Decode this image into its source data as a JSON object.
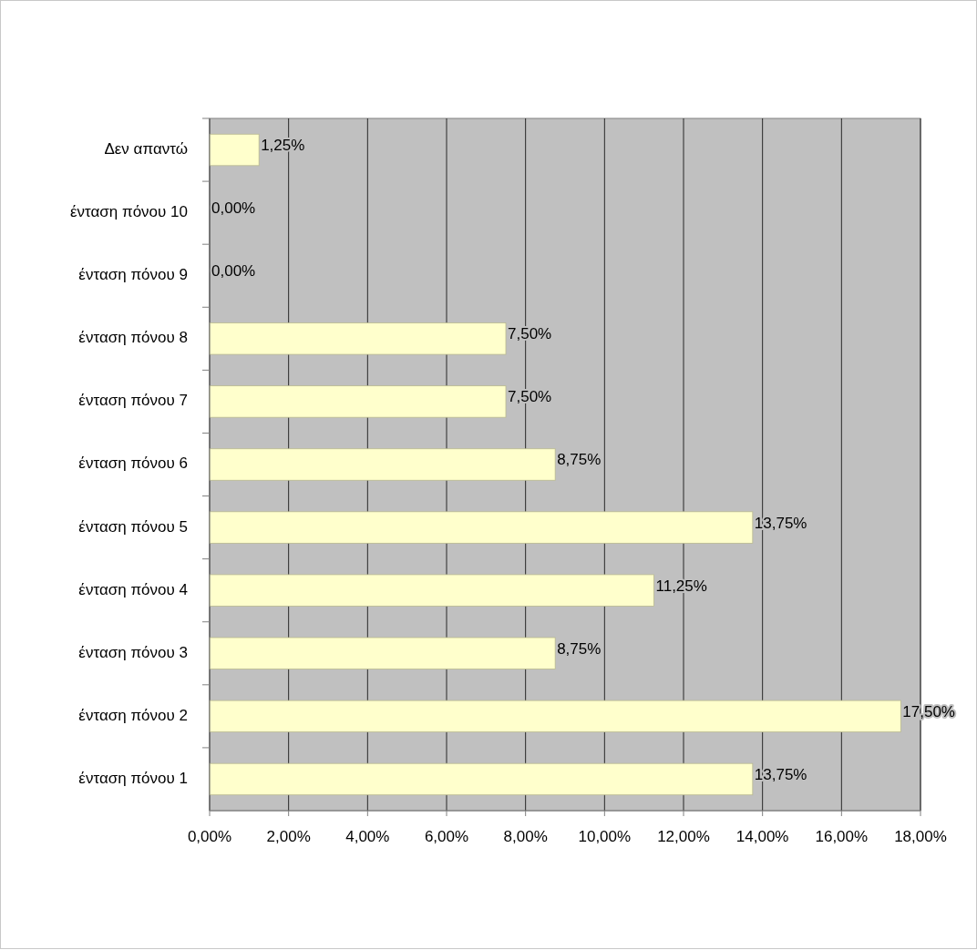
{
  "chart_data": {
    "type": "bar",
    "orientation": "horizontal",
    "categories": [
      "Δεν απαντώ",
      "ένταση πόνου 10",
      "ένταση πόνου 9",
      "ένταση πόνου 8",
      "ένταση πόνου 7",
      "ένταση πόνου 6",
      "ένταση πόνου 5",
      "ένταση πόνου 4",
      "ένταση πόνου 3",
      "ένταση πόνου 2",
      "ένταση πόνου 1"
    ],
    "values": [
      1.25,
      0,
      0,
      7.5,
      7.5,
      8.75,
      13.75,
      11.25,
      8.75,
      17.5,
      13.75
    ],
    "value_labels": [
      "1,25%",
      "0,00%",
      "0,00%",
      "7,50%",
      "7,50%",
      "8,75%",
      "13,75%",
      "11,25%",
      "8,75%",
      "17,50%",
      "13,75%"
    ],
    "color": "#ffffcc",
    "xlim": [
      0,
      18
    ],
    "xticks": [
      {
        "value": 0,
        "label": "0,00%"
      },
      {
        "value": 2,
        "label": "2,00%"
      },
      {
        "value": 4,
        "label": "4,00%"
      },
      {
        "value": 6,
        "label": "6,00%"
      },
      {
        "value": 8,
        "label": "8,00%"
      },
      {
        "value": 10,
        "label": "10,00%"
      },
      {
        "value": 12,
        "label": "12,00%"
      },
      {
        "value": 14,
        "label": "14,00%"
      },
      {
        "value": 16,
        "label": "16,00%"
      },
      {
        "value": 18,
        "label": "18,00%"
      }
    ],
    "grid": "x"
  }
}
